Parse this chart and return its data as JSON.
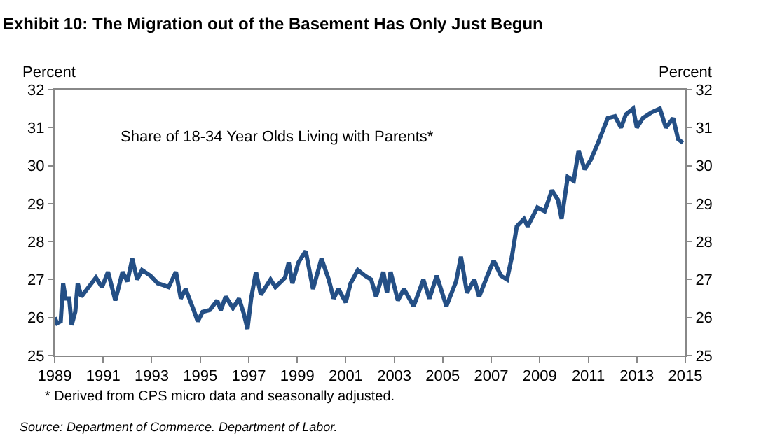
{
  "chart_data": {
    "type": "line",
    "title": "Exhibit 10: The Migration out of the Basement Has Only Just Begun",
    "ylabel": "Percent",
    "y2label": "Percent",
    "annotations": [
      "Share of 18-34 Year Olds Living with Parents*",
      "* Derived from CPS micro data and seasonally adjusted.",
      "Source: Department of Commerce. Department of Labor."
    ],
    "x": [
      1989.0,
      1989.1,
      1989.25,
      1989.35,
      1989.45,
      1989.6,
      1989.7,
      1989.85,
      1989.95,
      1990.1,
      1990.4,
      1990.7,
      1990.95,
      1991.2,
      1991.5,
      1991.8,
      1992.0,
      1992.2,
      1992.4,
      1992.6,
      1992.95,
      1993.25,
      1993.5,
      1993.7,
      1994.0,
      1994.2,
      1994.4,
      1994.7,
      1994.9,
      1995.1,
      1995.4,
      1995.7,
      1995.85,
      1996.05,
      1996.35,
      1996.6,
      1996.8,
      1996.95,
      1997.1,
      1997.3,
      1997.5,
      1997.9,
      1998.1,
      1998.5,
      1998.65,
      1998.8,
      1999.05,
      1999.35,
      1999.65,
      2000.0,
      2000.3,
      2000.5,
      2000.7,
      2001.0,
      2001.2,
      2001.5,
      2001.8,
      2002.05,
      2002.25,
      2002.55,
      2002.7,
      2002.85,
      2003.15,
      2003.4,
      2003.8,
      2004.2,
      2004.45,
      2004.75,
      2005.15,
      2005.55,
      2005.75,
      2006.0,
      2006.3,
      2006.5,
      2006.9,
      2007.1,
      2007.4,
      2007.65,
      2007.85,
      2008.05,
      2008.35,
      2008.5,
      2008.9,
      2009.2,
      2009.5,
      2009.75,
      2009.9,
      2010.15,
      2010.4,
      2010.6,
      2010.85,
      2011.1,
      2011.4,
      2011.8,
      2012.1,
      2012.35,
      2012.55,
      2012.85,
      2013.0,
      2013.25,
      2013.6,
      2013.95,
      2014.2,
      2014.5,
      2014.7,
      2014.9
    ],
    "series": [
      {
        "color": "#244f85",
        "values": [
          26.0,
          25.85,
          25.9,
          26.9,
          26.5,
          26.5,
          25.8,
          26.15,
          26.9,
          26.55,
          26.8,
          27.05,
          26.8,
          27.2,
          26.45,
          27.2,
          26.95,
          27.55,
          27.0,
          27.25,
          27.1,
          26.9,
          26.85,
          26.8,
          27.2,
          26.5,
          26.75,
          26.25,
          25.9,
          26.15,
          26.2,
          26.45,
          26.2,
          26.55,
          26.25,
          26.5,
          26.1,
          25.7,
          26.5,
          27.2,
          26.6,
          27.0,
          26.8,
          27.05,
          27.45,
          26.9,
          27.45,
          27.75,
          26.75,
          27.55,
          27.0,
          26.5,
          26.75,
          26.4,
          26.9,
          27.25,
          27.1,
          27.0,
          26.55,
          27.2,
          26.65,
          27.2,
          26.45,
          26.75,
          26.3,
          27.0,
          26.5,
          27.1,
          26.3,
          26.95,
          27.6,
          26.65,
          27.0,
          26.55,
          27.2,
          27.5,
          27.1,
          27.0,
          27.6,
          28.4,
          28.6,
          28.4,
          28.9,
          28.8,
          29.35,
          29.1,
          28.6,
          29.7,
          29.6,
          30.4,
          29.9,
          30.15,
          30.6,
          31.25,
          31.3,
          31.0,
          31.35,
          31.5,
          31.0,
          31.25,
          31.4,
          31.5,
          31.0,
          31.25,
          30.7,
          30.6
        ]
      }
    ],
    "xlim": [
      1989,
      2015
    ],
    "xticks": [
      1989,
      1991,
      1993,
      1995,
      1997,
      1999,
      2001,
      2003,
      2005,
      2007,
      2009,
      2011,
      2013,
      2015
    ],
    "ylim": [
      25,
      32
    ],
    "yticks": [
      25,
      26,
      27,
      28,
      29,
      30,
      31,
      32
    ],
    "y2lim": [
      25,
      32
    ],
    "y2ticks": [
      25,
      26,
      27,
      28,
      29,
      30,
      31,
      32
    ],
    "marker": "none",
    "line_style": "solid"
  }
}
